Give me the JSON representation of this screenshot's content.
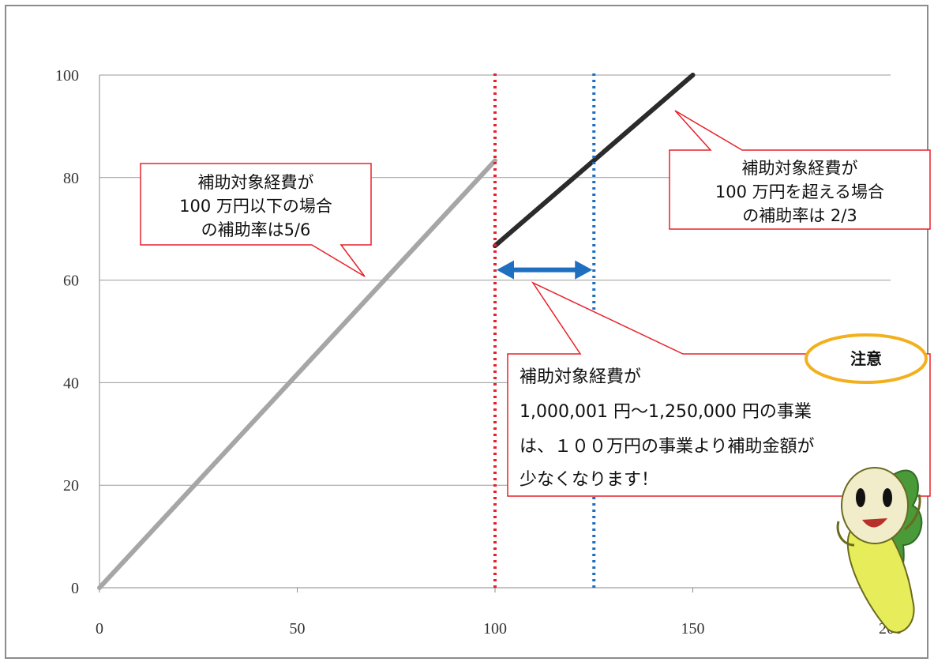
{
  "chart_data": {
    "type": "line",
    "x_ticks": [
      "0",
      "50",
      "100",
      "150",
      "200"
    ],
    "y_ticks": [
      "0",
      "20",
      "40",
      "60",
      "80",
      "100"
    ],
    "xlim": [
      0,
      200
    ],
    "ylim": [
      0,
      100
    ],
    "grid": "horizontal",
    "series": [
      {
        "x": [
          0,
          100
        ],
        "y": [
          0,
          83.3
        ],
        "color": "#a6a6a6"
      },
      {
        "x": [
          100,
          150
        ],
        "y": [
          66.7,
          100
        ],
        "color": "#2b2b2b"
      }
    ],
    "vlines": [
      {
        "x": 100,
        "color": "#e8202a",
        "style": "dotted"
      },
      {
        "x": 125,
        "color": "#1f6fc0",
        "style": "dotted"
      }
    ],
    "range_arrow": {
      "x1": 100,
      "x2": 125,
      "y": 62,
      "color": "#1f6fc0"
    },
    "annotations": {
      "left": [
        "補助対象経費が",
        "100 万円以下の場合",
        "の補助率は5/6"
      ],
      "right": [
        "補助対象経費が",
        "100 万円を超える場合",
        "の補助率は 2/3"
      ],
      "note": [
        "補助対象経費が",
        "1,000,001 円～1,250,000 円の事業",
        "は、１００万円の事業より補助金額が",
        "少なくなります！"
      ],
      "badge": "注意"
    },
    "colors": {
      "callout_border": "#e8202a",
      "badge_border": "#f2b01e",
      "mascot_body": "#e6ec5a",
      "mascot_leaf": "#4a9a3a"
    }
  }
}
